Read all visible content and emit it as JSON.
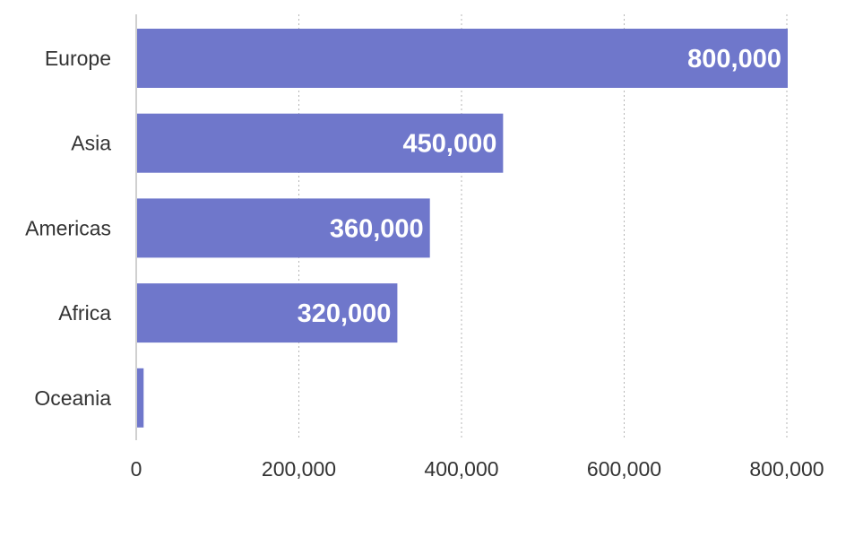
{
  "chart_data": {
    "type": "bar",
    "orientation": "horizontal",
    "categories": [
      "Europe",
      "Asia",
      "Americas",
      "Africa",
      "Oceania"
    ],
    "values": [
      800000,
      450000,
      360000,
      320000,
      8000
    ],
    "value_labels": [
      "800,000",
      "450,000",
      "360,000",
      "320,000",
      ""
    ],
    "xlim": [
      0,
      800000
    ],
    "x_ticks": [
      0,
      200000,
      400000,
      600000,
      800000
    ],
    "x_tick_labels": [
      "0",
      "200,000",
      "400,000",
      "600,000",
      "800,000"
    ],
    "bar_color": "#6f77cb",
    "grid": "vertical dotted",
    "legend": "none"
  }
}
